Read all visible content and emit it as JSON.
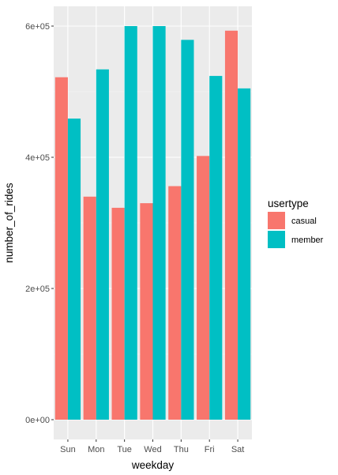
{
  "chart_data": {
    "type": "bar",
    "xlabel": "weekday",
    "ylabel": "number_of_rides",
    "categories": [
      "Sun",
      "Mon",
      "Tue",
      "Wed",
      "Thu",
      "Fri",
      "Sat"
    ],
    "ylim": [
      0,
      600000
    ],
    "yticks": [
      0,
      200000,
      400000,
      600000
    ],
    "ytick_labels": [
      "0e+00",
      "2e+05",
      "4e+05",
      "6e+05"
    ],
    "grid": true,
    "legend": {
      "title": "usertype",
      "position": "right"
    },
    "series": [
      {
        "name": "casual",
        "color": "#F8766D",
        "values": [
          522000,
          340000,
          323000,
          330000,
          356000,
          402000,
          593000
        ]
      },
      {
        "name": "member",
        "color": "#00BFC4",
        "values": [
          459000,
          534000,
          600000,
          600000,
          579000,
          524000,
          505000
        ]
      }
    ]
  }
}
